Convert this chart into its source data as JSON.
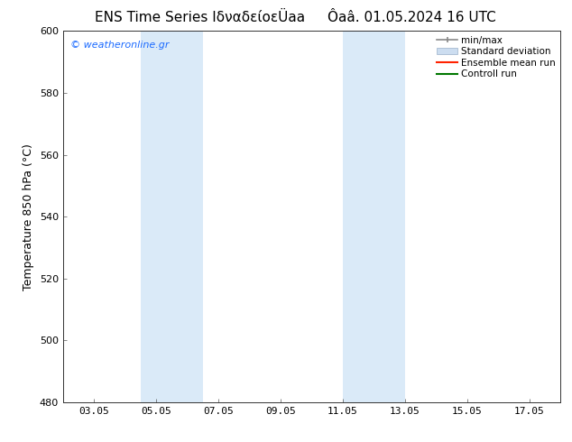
{
  "title_left": "ENS Time Series ΙδναδείοεÜaa",
  "title_right": "Ôaâ. 01.05.2024 16 UTC",
  "ylabel": "Temperature 850 hPa (°C)",
  "watermark": "© weatheronline.gr",
  "background_color": "#ffffff",
  "plot_bg_color": "#ffffff",
  "shaded_regions": [
    {
      "xmin": 4.5,
      "xmax": 6.5,
      "color": "#daeaf8"
    },
    {
      "xmin": 11.0,
      "xmax": 13.0,
      "color": "#daeaf8"
    }
  ],
  "xtick_labels": [
    "03.05",
    "05.05",
    "07.05",
    "09.05",
    "11.05",
    "13.05",
    "15.05",
    "17.05"
  ],
  "xtick_positions": [
    3,
    5,
    7,
    9,
    11,
    13,
    15,
    17
  ],
  "ylim": [
    480,
    600
  ],
  "xlim": [
    2,
    18
  ],
  "ytick_positions": [
    480,
    500,
    520,
    540,
    560,
    580,
    600
  ],
  "legend_items": [
    {
      "label": "min/max",
      "color": "#aaaaaa",
      "style": "minmax"
    },
    {
      "label": "Standard deviation",
      "color": "#ccddf0",
      "style": "stddev"
    },
    {
      "label": "Ensemble mean run",
      "color": "#ff0000",
      "style": "line"
    },
    {
      "label": "Controll run",
      "color": "#009900",
      "style": "line"
    }
  ],
  "watermark_color": "#1a6aff",
  "font_size_title": 11,
  "font_size_labels": 9,
  "font_size_ticks": 8,
  "font_size_watermark": 8,
  "font_size_legend": 7.5
}
